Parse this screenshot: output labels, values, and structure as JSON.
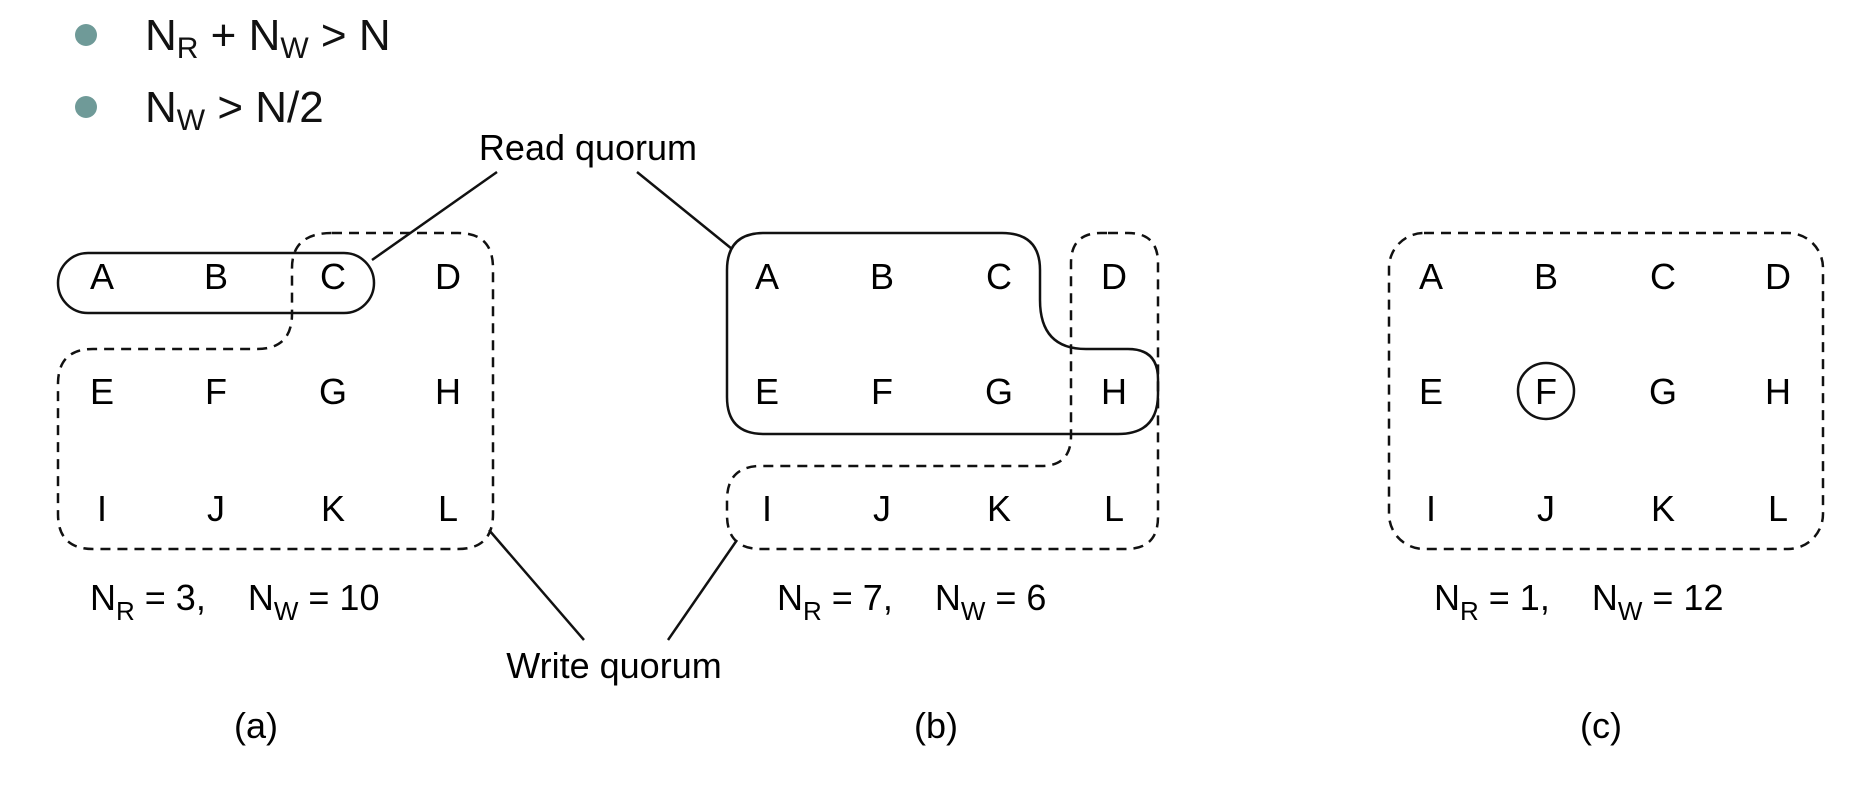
{
  "conditions": [
    {
      "main": "N",
      "sub": "R",
      "rest": " + N",
      "sub2": "W",
      "tail": " > N"
    },
    {
      "main": "N",
      "sub": "W",
      "rest": " > N/2",
      "sub2": "",
      "tail": ""
    }
  ],
  "callouts": {
    "read": "Read quorum",
    "write": "Write quorum"
  },
  "panels": [
    {
      "nodes": [
        "A",
        "B",
        "C",
        "D",
        "E",
        "F",
        "G",
        "H",
        "I",
        "J",
        "K",
        "L"
      ],
      "nr_label": "N",
      "nr_sub": "R",
      "nr_value": " = 3,",
      "nw_label": "N",
      "nw_sub": "W",
      "nw_value": " = 10",
      "label": "(a)"
    },
    {
      "nodes": [
        "A",
        "B",
        "C",
        "D",
        "E",
        "F",
        "G",
        "H",
        "I",
        "J",
        "K",
        "L"
      ],
      "nr_label": "N",
      "nr_sub": "R",
      "nr_value": " = 7,",
      "nw_label": "N",
      "nw_sub": "W",
      "nw_value": " = 6",
      "label": "(b)"
    },
    {
      "nodes": [
        "A",
        "B",
        "C",
        "D",
        "E",
        "F",
        "G",
        "H",
        "I",
        "J",
        "K",
        "L"
      ],
      "nr_label": "N",
      "nr_sub": "R",
      "nr_value": " = 1,",
      "nw_label": "N",
      "nw_sub": "W",
      "nw_value": " = 12",
      "label": "(c)"
    }
  ]
}
